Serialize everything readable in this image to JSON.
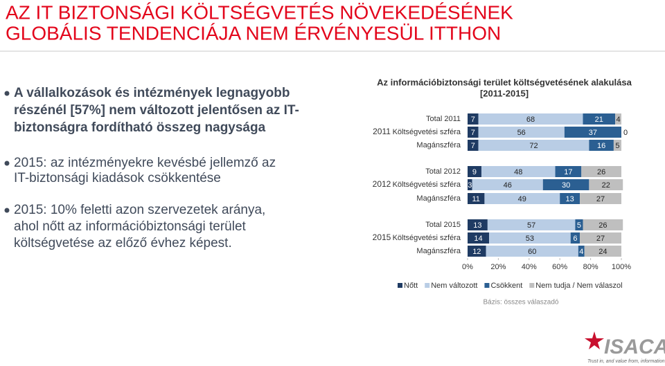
{
  "header": {
    "title": [
      "AZ IT BIZTONSÁGI KÖLTSÉGVETÉS NÖVEKEDÉSÉNEK",
      "GLOBÁLIS TENDENCIÁJA NEM ÉRVÉNYESÜL ITTHON"
    ]
  },
  "bullets": [
    [
      "A vállalkozások és intézmények legnagyobb",
      "részénél [57%] nem változott jelentősen az IT-",
      "biztonságra fordítható összeg nagysága"
    ],
    [
      "2015: az intézményekre kevésbé jellemző az",
      "IT-biztonsági kiadások csökkentése"
    ],
    [
      "2015: 10% feletti azon szervezetek aránya,",
      "ahol nőtt az információbiztonsági terület",
      "költségvetése az előző évhez képest."
    ]
  ],
  "chart_data": {
    "type": "stacked-bar-horizontal",
    "title": [
      "Az információbiztonsági terület költségvetésének alakulása",
      "[2011-2015]"
    ],
    "groups": [
      "2011",
      "2012",
      "2015"
    ],
    "categories": [
      "Total 2011",
      "Költségvetési szféra",
      "Magánszféra",
      "Total 2012",
      "Költségvetési szféra",
      "Magánszféra",
      "Total 2015",
      "Költségvetési szféra",
      "Magánszféra"
    ],
    "series": [
      {
        "name": "Nőtt",
        "color": "#1f3b63",
        "values": [
          7,
          7,
          7,
          9,
          3,
          11,
          13,
          14,
          12
        ]
      },
      {
        "name": "Nem változott",
        "color": "#b9cde5",
        "values": [
          68,
          56,
          72,
          48,
          46,
          49,
          57,
          53,
          60
        ]
      },
      {
        "name": "Csökkent",
        "color": "#2b5f92",
        "values": [
          21,
          37,
          16,
          17,
          30,
          13,
          5,
          6,
          4
        ]
      },
      {
        "name": "Nem tudja / Nem válaszol",
        "color": "#bfbfbf",
        "values": [
          4,
          0,
          5,
          26,
          22,
          27,
          26,
          27,
          24
        ]
      }
    ],
    "xlim": [
      0,
      100
    ],
    "xticks": [
      {
        "value": 0,
        "label": "0%"
      },
      {
        "value": 20,
        "label": "20%"
      },
      {
        "value": 40,
        "label": "40%"
      },
      {
        "value": 60,
        "label": "60%"
      },
      {
        "value": 80,
        "label": "80%"
      },
      {
        "value": 100,
        "label": "100%"
      }
    ],
    "note": "Bázis: összes válaszadó"
  },
  "logo": {
    "name": "ISACA",
    "tagline": "Trust in, and value from, information systems"
  }
}
